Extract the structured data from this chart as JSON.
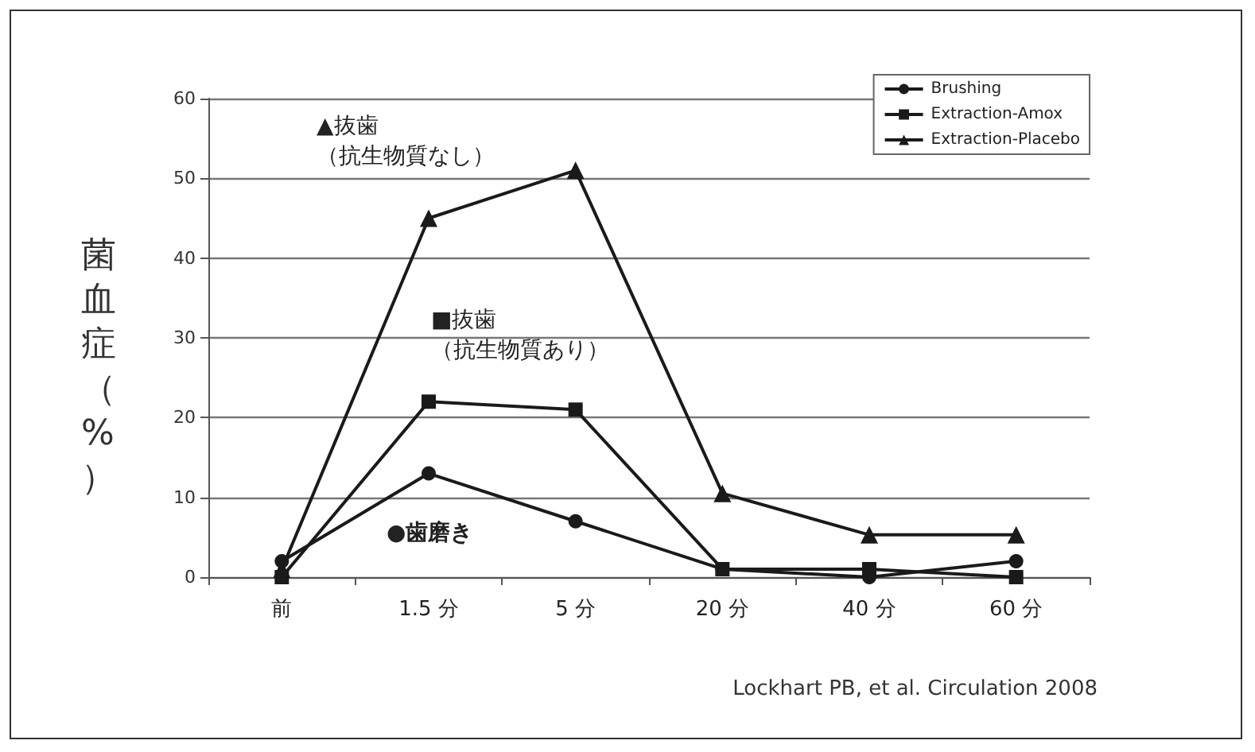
{
  "chart_data": {
    "type": "line",
    "ylabel": "菌血症（%）",
    "categories": [
      "前",
      "1.5 分",
      "5 分",
      "20 分",
      "40 分",
      "60 分"
    ],
    "series": [
      {
        "name": "Brushing",
        "color": "#1a1a1a",
        "marker": "circle",
        "values": [
          2,
          13,
          7,
          1,
          0,
          2
        ]
      },
      {
        "name": "Extraction-Amox",
        "color": "#1a1a1a",
        "marker": "square",
        "values": [
          0,
          22,
          21,
          1,
          1,
          0
        ]
      },
      {
        "name": "Extraction-Placebo",
        "color": "#1a1a1a",
        "marker": "triangle",
        "values": [
          1,
          45,
          51,
          10.5,
          5.3,
          5.3
        ]
      }
    ],
    "annotations": [
      "▲抜歯（抗生物質なし）",
      "■抜歯（抗生物質あり）",
      "●歯磨き",
      "Lockhart PB, et al. Circulation 2008"
    ],
    "ylim": [
      0,
      60
    ],
    "yticks": [
      0,
      10,
      20,
      30,
      40,
      50,
      60
    ],
    "grid": "y",
    "legend": "top right",
    "line_style": "solid"
  }
}
